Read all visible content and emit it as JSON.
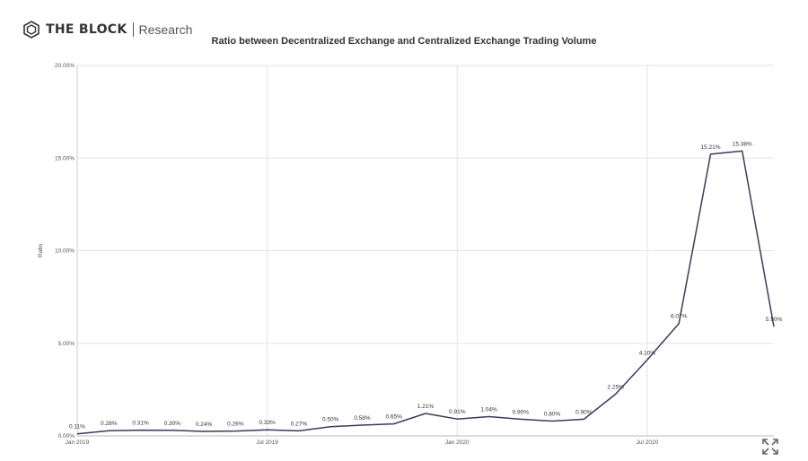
{
  "brand": {
    "name": "THE BLOCK",
    "section": "Research"
  },
  "icons": {
    "logo": "the-block-cube-icon",
    "expand": "expand-icon"
  },
  "colors": {
    "line": "#3d3a5c",
    "grid": "#e3e3e3",
    "text": "#333333"
  },
  "chart_data": {
    "type": "line",
    "title": "Ratio between Decentralized Exchange and Centralized Exchange Trading Volume",
    "xlabel": "",
    "ylabel": "Ratio",
    "x_ticks": [
      "Jan 2019",
      "Jul 2019",
      "Jan 2020",
      "Jul 2020"
    ],
    "y_ticks": [
      "0.00%",
      "5.00%",
      "10.00%",
      "15.00%",
      "20.00%"
    ],
    "ylim": [
      0,
      20
    ],
    "grid": true,
    "series": [
      {
        "x": [
          "2019-01",
          "2019-02",
          "2019-03",
          "2019-04",
          "2019-05",
          "2019-06",
          "2019-07",
          "2019-08",
          "2019-09",
          "2019-10",
          "2019-11",
          "2019-12",
          "2020-01",
          "2020-02",
          "2020-03",
          "2020-04",
          "2020-05",
          "2020-06",
          "2020-07",
          "2020-08",
          "2020-09",
          "2020-10",
          "2020-11"
        ],
        "values": [
          0.11,
          0.28,
          0.31,
          0.3,
          0.24,
          0.26,
          0.33,
          0.27,
          0.5,
          0.58,
          0.65,
          1.21,
          0.91,
          1.04,
          0.9,
          0.8,
          0.9,
          2.25,
          4.1,
          6.07,
          15.21,
          15.38,
          5.9
        ],
        "labels": [
          "0.11%",
          "0.28%",
          "0.31%",
          "0.30%",
          "0.24%",
          "0.26%",
          "0.33%",
          "0.27%",
          "0.50%",
          "0.58%",
          "0.65%",
          "1.21%",
          "0.91%",
          "1.04%",
          "0.90%",
          "0.80%",
          "0.90%",
          "2.25%",
          "4.10%",
          "6.07%",
          "15.21%",
          "15.38%",
          "5.90%"
        ]
      }
    ]
  }
}
